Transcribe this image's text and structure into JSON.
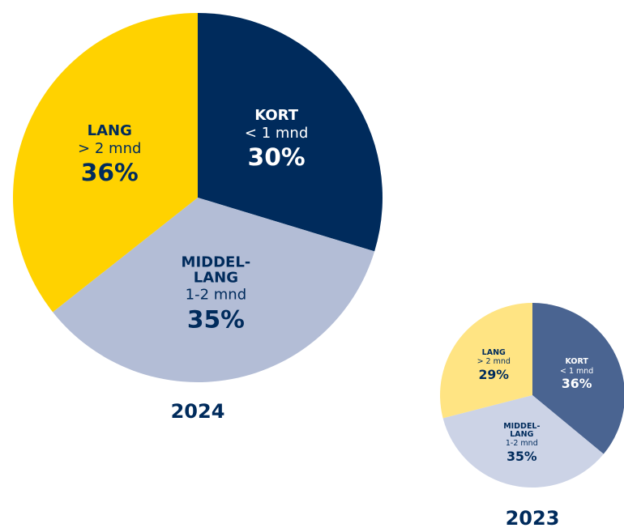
{
  "chart_data": [
    {
      "type": "pie",
      "title": "2024",
      "categories": [
        "KORT",
        "MIDDEL-\nLANG",
        "LANG"
      ],
      "sublabels": [
        "< 1 mnd",
        "1-2 mnd",
        "> 2 mnd"
      ],
      "values": [
        30,
        35,
        36
      ],
      "value_labels": [
        "30%",
        "35%",
        "36%"
      ],
      "colors": [
        "#002b5c",
        "#b3bdd6",
        "#ffd200"
      ]
    },
    {
      "type": "pie",
      "title": "2023",
      "categories": [
        "KORT",
        "MIDDEL-\nLANG",
        "LANG"
      ],
      "sublabels": [
        "< 1 mnd",
        "1-2 mnd",
        "> 2 mnd"
      ],
      "values": [
        36,
        35,
        29
      ],
      "value_labels": [
        "36%",
        "35%",
        "29%"
      ],
      "colors": [
        "#4a6491",
        "#ccd3e6",
        "#ffe483"
      ]
    }
  ]
}
